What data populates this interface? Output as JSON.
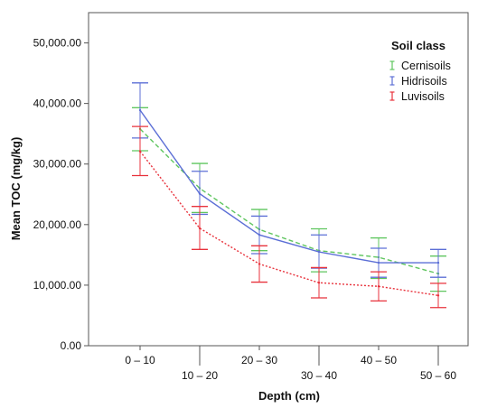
{
  "chart_data": {
    "type": "line",
    "xlabel": "Depth (cm)",
    "ylabel": "Mean TOC (mg/kg)",
    "categories": [
      "0 – 10",
      "10 – 20",
      "20 – 30",
      "30 – 40",
      "40 – 50",
      "50 – 60"
    ],
    "ylim": [
      0,
      55000
    ],
    "yticks": [
      "0.00",
      "10,000.00",
      "20,000.00",
      "30,000.00",
      "40,000.00",
      "50,000.00"
    ],
    "ytick_values": [
      0,
      10000,
      20000,
      30000,
      40000,
      50000
    ],
    "grid": false,
    "legend": {
      "title": "Soil class",
      "placement": "top-right"
    },
    "series": [
      {
        "name": "Cernisoils",
        "color": "#5fc65f",
        "line_style": "dashed",
        "values": [
          35800,
          26000,
          19200,
          15700,
          14600,
          11900
        ],
        "lower": [
          32200,
          22000,
          15700,
          12200,
          11100,
          9000
        ],
        "upper": [
          39300,
          30100,
          22500,
          19300,
          17800,
          14800
        ]
      },
      {
        "name": "Hidrisoils",
        "color": "#5c6fd6",
        "line_style": "solid",
        "values": [
          38900,
          25100,
          18300,
          15500,
          13700,
          13700
        ],
        "lower": [
          34300,
          21700,
          15200,
          12800,
          11300,
          11300
        ],
        "upper": [
          43400,
          28800,
          21400,
          18300,
          16100,
          15900
        ]
      },
      {
        "name": "Luvisoils",
        "color": "#e8323c",
        "line_style": "dotted",
        "values": [
          32100,
          19400,
          13500,
          10400,
          9800,
          8300
        ],
        "lower": [
          28100,
          15900,
          10500,
          7900,
          7400,
          6300
        ],
        "upper": [
          36200,
          23000,
          16500,
          12900,
          12200,
          10300
        ]
      }
    ]
  }
}
